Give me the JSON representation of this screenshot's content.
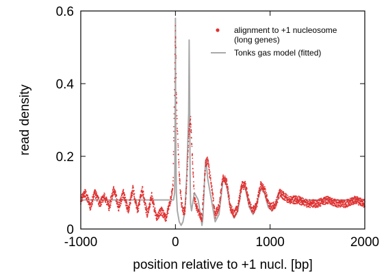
{
  "chart_data": {
    "type": "scatter",
    "xlabel": "position relative to +1 nucl. [bp]",
    "ylabel": "read density",
    "xlim": [
      -1000,
      2000
    ],
    "ylim": [
      0,
      0.6
    ],
    "x_ticks": [
      -1000,
      0,
      1000,
      2000
    ],
    "x_tick_labels": [
      "-1000",
      "0",
      "1000",
      "2000"
    ],
    "y_ticks": [
      0,
      0.2,
      0.4,
      0.6
    ],
    "y_tick_labels": [
      "0",
      "0.2",
      "0.4",
      "0.6"
    ],
    "grid": false,
    "legend_position": "top-right",
    "series": [
      {
        "name": "alignment to +1 nucleosome",
        "name_line2": "(long genes)",
        "kind": "scatter",
        "color": "#e03030",
        "x": [
          -1000,
          -950,
          -900,
          -850,
          -800,
          -750,
          -700,
          -650,
          -600,
          -550,
          -500,
          -450,
          -400,
          -350,
          -300,
          -250,
          -200,
          -150,
          -100,
          -50,
          -25,
          0,
          5,
          10,
          20,
          40,
          60,
          80,
          100,
          120,
          140,
          160,
          180,
          200,
          240,
          280,
          320,
          340,
          380,
          420,
          460,
          500,
          540,
          580,
          620,
          660,
          700,
          740,
          780,
          820,
          860,
          900,
          940,
          980,
          1020,
          1060,
          1100,
          1150,
          1200,
          1300,
          1400,
          1500,
          1600,
          1700,
          1800,
          1900,
          2000
        ],
        "y": [
          0.08,
          0.1,
          0.06,
          0.1,
          0.07,
          0.09,
          0.06,
          0.11,
          0.06,
          0.1,
          0.05,
          0.11,
          0.05,
          0.11,
          0.04,
          0.09,
          0.03,
          0.05,
          0.03,
          0.08,
          0.12,
          0.55,
          0.49,
          0.38,
          0.28,
          0.15,
          0.08,
          0.05,
          0.05,
          0.13,
          0.26,
          0.3,
          0.19,
          0.08,
          0.05,
          0.03,
          0.18,
          0.19,
          0.12,
          0.04,
          0.06,
          0.14,
          0.13,
          0.06,
          0.04,
          0.06,
          0.12,
          0.12,
          0.07,
          0.05,
          0.07,
          0.12,
          0.11,
          0.07,
          0.06,
          0.07,
          0.1,
          0.09,
          0.08,
          0.08,
          0.07,
          0.07,
          0.08,
          0.07,
          0.07,
          0.08,
          0.07
        ]
      },
      {
        "name": "Tonks gas model (fitted)",
        "kind": "line",
        "color": "#a8a8a8",
        "x": [
          -1000,
          -950,
          -900,
          -850,
          -800,
          -750,
          -700,
          -650,
          -600,
          -550,
          -500,
          -450,
          -400,
          -350,
          -300,
          -250,
          -200,
          -150,
          -100,
          -50,
          -20,
          -8,
          -2,
          0,
          2,
          5,
          10,
          20,
          40,
          60,
          80,
          100,
          120,
          140,
          145,
          150,
          155,
          160,
          170,
          200,
          240,
          270,
          280,
          290,
          310,
          320,
          330,
          340,
          380,
          420,
          460,
          500,
          520,
          540,
          580,
          620,
          660,
          700,
          740,
          780,
          820,
          860,
          900,
          940,
          980,
          1020,
          1060,
          1100,
          1150,
          1200,
          1300,
          1400,
          1500,
          1600,
          1700,
          1800,
          1900,
          2000
        ],
        "y": [
          0.08,
          0.08,
          0.08,
          0.08,
          0.08,
          0.08,
          0.08,
          0.08,
          0.08,
          0.08,
          0.08,
          0.08,
          0.08,
          0.08,
          0.08,
          0.08,
          0.08,
          0.08,
          0.08,
          0.08,
          0.08,
          0.1,
          0.35,
          0.58,
          0.35,
          0.2,
          0.1,
          0.05,
          0.02,
          0.01,
          0.02,
          0.05,
          0.15,
          0.32,
          0.52,
          0.36,
          0.15,
          0.07,
          0.05,
          0.1,
          0.08,
          0.03,
          0.01,
          0.03,
          0.15,
          0.19,
          0.17,
          0.14,
          0.08,
          0.02,
          0.04,
          0.13,
          0.14,
          0.12,
          0.06,
          0.03,
          0.05,
          0.12,
          0.11,
          0.06,
          0.04,
          0.07,
          0.11,
          0.1,
          0.06,
          0.05,
          0.07,
          0.1,
          0.09,
          0.08,
          0.08,
          0.08,
          0.08,
          0.08,
          0.08,
          0.08,
          0.08,
          0.08
        ]
      }
    ]
  }
}
